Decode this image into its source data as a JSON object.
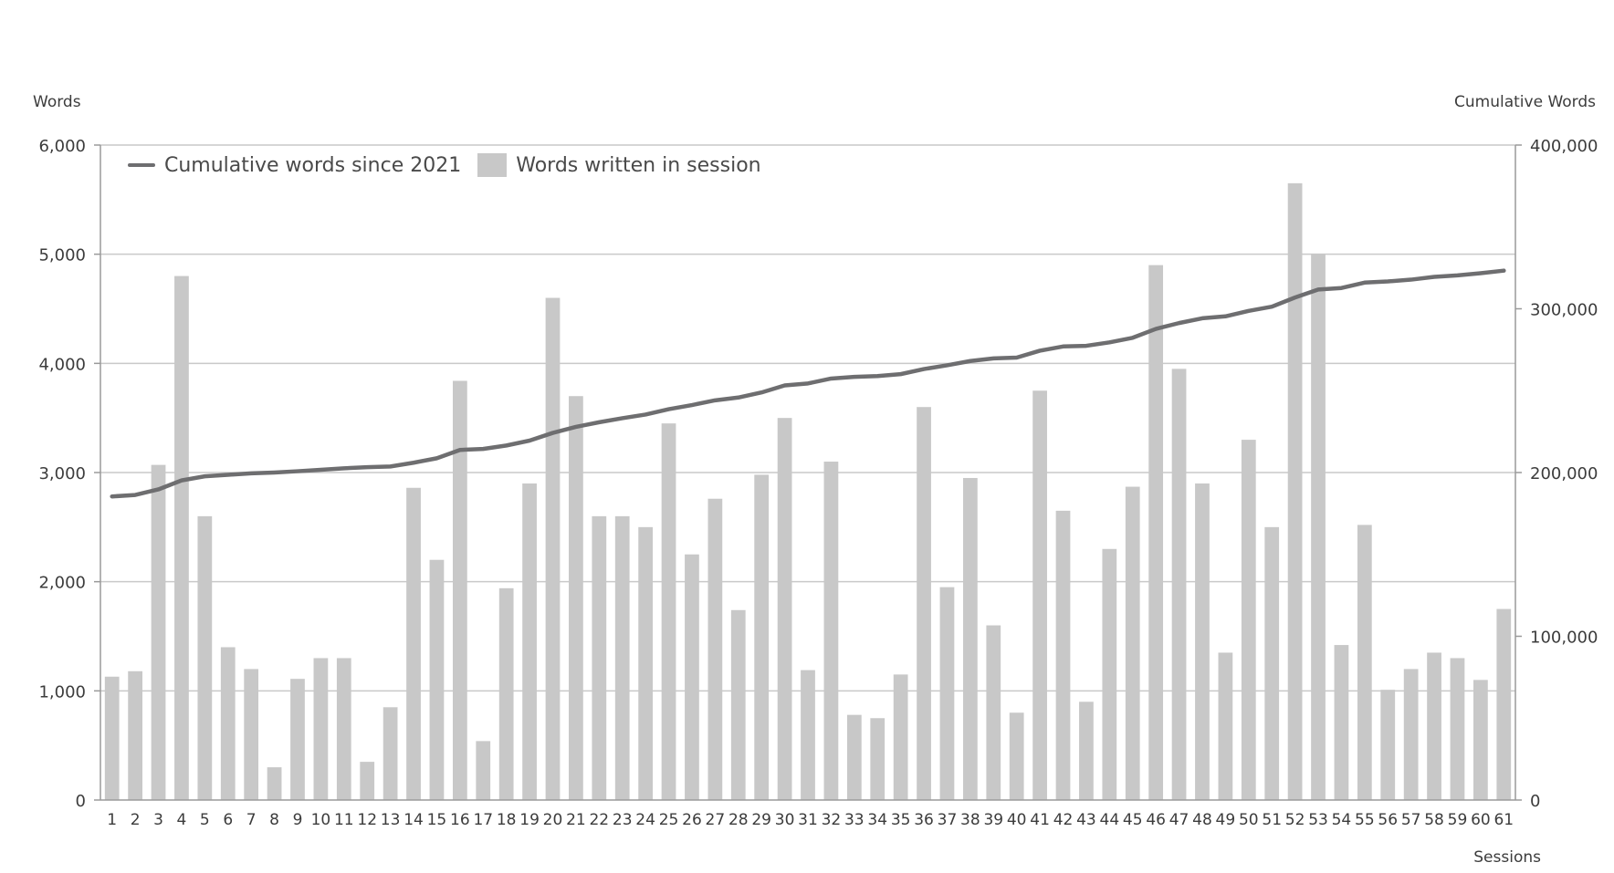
{
  "chart_data": {
    "type": "bar",
    "title": "",
    "ylabel": "Words",
    "y2label": "Cumulative Words",
    "xlabel": "Sessions",
    "ylim": [
      0,
      6000
    ],
    "y2lim": [
      0,
      400000
    ],
    "y_ticks": [
      "0",
      "1,000",
      "2,000",
      "3,000",
      "4,000",
      "5,000",
      "6,000"
    ],
    "y2_ticks": [
      "0",
      "100,000",
      "200,000",
      "300,000",
      "400,000"
    ],
    "grid": true,
    "legend_position": "top-left",
    "categories": [
      "1",
      "2",
      "3",
      "4",
      "5",
      "6",
      "7",
      "8",
      "9",
      "10",
      "11",
      "12",
      "13",
      "14",
      "15",
      "16",
      "17",
      "18",
      "19",
      "20",
      "21",
      "22",
      "23",
      "24",
      "25",
      "26",
      "27",
      "28",
      "29",
      "30",
      "31",
      "32",
      "33",
      "34",
      "35",
      "36",
      "37",
      "38",
      "39",
      "40",
      "41",
      "42",
      "43",
      "44",
      "45",
      "46",
      "47",
      "48",
      "49",
      "50",
      "51",
      "52",
      "53",
      "54",
      "55",
      "56",
      "57",
      "58",
      "59",
      "60",
      "61"
    ],
    "series": [
      {
        "name": "Cumulative words since 2021",
        "kind": "line",
        "axis": "right",
        "color": "#6e6e70",
        "values": [
          185400,
          186300,
          189700,
          195200,
          197700,
          198600,
          199500,
          200000,
          200800,
          201700,
          202600,
          203300,
          203700,
          206000,
          208700,
          213800,
          214400,
          216500,
          219500,
          224200,
          227900,
          230700,
          233200,
          235400,
          238700,
          241200,
          244100,
          245800,
          248900,
          253200,
          254400,
          257400,
          258400,
          258900,
          260100,
          263200,
          265500,
          268100,
          269700,
          270200,
          274400,
          277000,
          277400,
          279500,
          282300,
          287700,
          291300,
          294200,
          295400,
          298700,
          301300,
          306900,
          311800,
          312700,
          316000,
          316700,
          317800,
          319500,
          320400,
          321700,
          323300
        ]
      },
      {
        "name": "Words written in session",
        "kind": "bar",
        "axis": "left",
        "color": "#c8c8c8",
        "values": [
          1130,
          1180,
          3070,
          4800,
          2600,
          1400,
          1200,
          300,
          1110,
          1300,
          1300,
          350,
          850,
          2860,
          2200,
          3840,
          540,
          1940,
          2900,
          4600,
          3700,
          2600,
          2600,
          2500,
          3450,
          2250,
          2760,
          1740,
          2980,
          3500,
          1190,
          3100,
          780,
          750,
          1150,
          3600,
          1950,
          2950,
          1600,
          800,
          3750,
          2650,
          900,
          2300,
          2870,
          4900,
          3950,
          2900,
          1350,
          3300,
          2500,
          5650,
          5000,
          1420,
          2520,
          1010,
          1200,
          1350,
          1300,
          1100,
          1750
        ]
      }
    ]
  }
}
